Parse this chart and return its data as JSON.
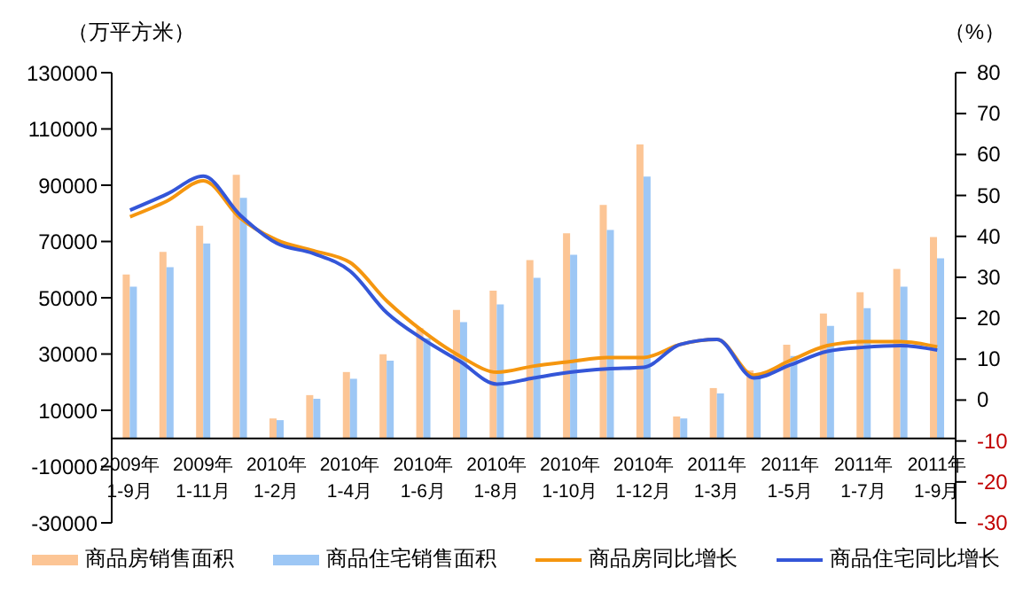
{
  "chart_data": {
    "type": "bar",
    "ylabel": "（万平方米）",
    "y2label": "（%）",
    "categories": [
      "2009年 1-9月",
      null,
      "2009年 1-11月",
      null,
      "2010年 1-2月",
      null,
      "2010年 1-4月",
      null,
      "2010年 1-6月",
      null,
      "2010年 1-8月",
      null,
      "2010年 1-10月",
      null,
      "2010年 1-12月",
      null,
      "2011年 1-3月",
      null,
      "2011年 1-5月",
      null,
      "2011年 1-7月",
      null,
      "2011年 1-9月"
    ],
    "series": [
      {
        "name": "商品房销售面积",
        "color": "#fcc595",
        "values": [
          58300,
          66300,
          75600,
          93700,
          7100,
          15400,
          23600,
          29900,
          39200,
          45700,
          52500,
          63400,
          72900,
          83000,
          104500,
          7800,
          17900,
          24200,
          33300,
          44400,
          52000,
          60200,
          71600
        ]
      },
      {
        "name": "商品住宅销售面积",
        "color": "#9dc7f5",
        "values": [
          53900,
          60900,
          69300,
          85500,
          6500,
          14100,
          21200,
          27600,
          35600,
          41300,
          47600,
          57100,
          65300,
          74100,
          93100,
          7100,
          16000,
          21700,
          29300,
          40000,
          46300,
          53900,
          64000
        ]
      },
      {
        "name": "商品房同比增长",
        "type": "line",
        "axis": "y2",
        "color": "#f5960f",
        "values": [
          44.8,
          48.6,
          53.6,
          44.5,
          39.1,
          36.5,
          33.6,
          24.2,
          16.7,
          10.7,
          6.8,
          8.3,
          9.4,
          10.4,
          10.4,
          13.6,
          14.8,
          6.1,
          9.7,
          13.3,
          14.3,
          14.3,
          13.0
        ]
      },
      {
        "name": "商品住宅同比增长",
        "type": "line",
        "axis": "y2",
        "color": "#3456d8",
        "values": [
          46.4,
          50.3,
          54.7,
          45.2,
          38.3,
          35.8,
          31.5,
          21.3,
          14.8,
          9.4,
          3.9,
          5.4,
          6.8,
          7.6,
          8.0,
          13.6,
          14.8,
          5.4,
          8.6,
          11.9,
          12.9,
          13.3,
          12.2
        ]
      }
    ],
    "ylim": [
      -30000,
      130000
    ],
    "yticks": [
      -30000,
      -10000,
      10000,
      30000,
      50000,
      70000,
      90000,
      110000,
      130000
    ],
    "y2lim": [
      -30,
      80
    ],
    "y2ticks": [
      -30,
      -20,
      -10,
      0,
      10,
      20,
      30,
      40,
      50,
      60,
      70,
      80
    ],
    "grid": false,
    "legend": "bottom",
    "marker": "none",
    "line_style": "solid"
  }
}
